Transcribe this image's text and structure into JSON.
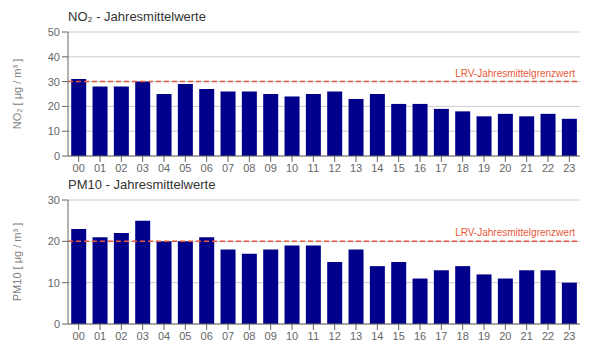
{
  "chart_data": [
    {
      "type": "bar",
      "title": "NO₂ - Jahresmittelwerte",
      "y_label": "NO₂ [ μg / m³ ]",
      "categories": [
        "00",
        "01",
        "02",
        "03",
        "04",
        "05",
        "06",
        "07",
        "08",
        "09",
        "10",
        "11",
        "12",
        "13",
        "14",
        "15",
        "16",
        "17",
        "18",
        "19",
        "20",
        "21",
        "22",
        "23"
      ],
      "values": [
        31,
        28,
        28,
        30,
        25,
        29,
        27,
        26,
        26,
        25,
        24,
        25,
        26,
        23,
        25,
        21,
        21,
        19,
        18,
        16,
        17,
        16,
        17,
        15
      ],
      "color": "#00008B",
      "ylim": [
        0,
        50
      ],
      "yticks": [
        0,
        10,
        20,
        30,
        40,
        50
      ],
      "grid": true,
      "reference_line": {
        "value": 30,
        "label": "LRV-Jahresmittelgrenzwert",
        "color": "#E8593A",
        "line_style": "dashed"
      }
    },
    {
      "type": "bar",
      "title": "PM10 - Jahresmittelwerte",
      "y_label": "PM10 [ μg / m³ ]",
      "categories": [
        "00",
        "01",
        "02",
        "03",
        "04",
        "05",
        "06",
        "07",
        "08",
        "09",
        "10",
        "11",
        "12",
        "13",
        "14",
        "15",
        "16",
        "17",
        "18",
        "19",
        "20",
        "21",
        "22",
        "23"
      ],
      "values": [
        23,
        21,
        22,
        25,
        20,
        20,
        21,
        18,
        17,
        18,
        19,
        19,
        15,
        18,
        14,
        15,
        11,
        13,
        14,
        12,
        11,
        13,
        13,
        10
      ],
      "color": "#00008B",
      "ylim": [
        0,
        30
      ],
      "yticks": [
        0,
        10,
        20,
        30
      ],
      "grid": true,
      "reference_line": {
        "value": 20,
        "label": "LRV-Jahresmittelgrenzwert",
        "color": "#E8593A",
        "line_style": "dashed"
      }
    }
  ]
}
